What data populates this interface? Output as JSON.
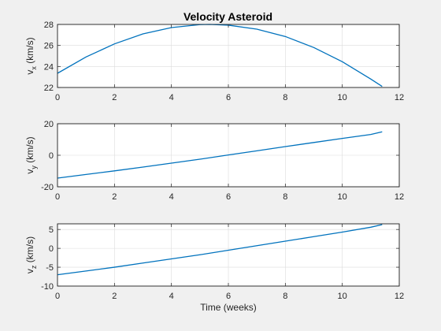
{
  "chart_data": [
    {
      "type": "line",
      "title": "Velocity Asteroid",
      "xlabel": "",
      "ylabel": {
        "main": "v",
        "sub": "x",
        "unit": " (km/s)"
      },
      "xlim": [
        0,
        12
      ],
      "ylim": [
        22,
        28
      ],
      "xticks": [
        0,
        2,
        4,
        6,
        8,
        10,
        12
      ],
      "yticks": [
        22,
        24,
        26,
        28
      ],
      "grid": true,
      "color": "#0072bd",
      "series": [
        {
          "x": [
            0,
            1,
            2,
            3,
            4,
            5,
            5.35,
            6,
            7,
            8,
            9,
            10,
            11,
            11.4
          ],
          "values": [
            23.35,
            24.9,
            26.15,
            27.1,
            27.7,
            27.98,
            28.0,
            27.93,
            27.55,
            26.85,
            25.8,
            24.45,
            22.8,
            22.1
          ]
        }
      ]
    },
    {
      "type": "line",
      "title": "",
      "xlabel": "",
      "ylabel": {
        "main": "v",
        "sub": "y",
        "unit": " (km/s)"
      },
      "xlim": [
        0,
        12
      ],
      "ylim": [
        -20,
        20
      ],
      "xticks": [
        0,
        2,
        4,
        6,
        8,
        10,
        12
      ],
      "yticks": [
        -20,
        0,
        20
      ],
      "grid": true,
      "color": "#0072bd",
      "series": [
        {
          "x": [
            0,
            1,
            2,
            3,
            4,
            5,
            6,
            7,
            8,
            9,
            10,
            11,
            11.4
          ],
          "values": [
            -14.5,
            -12.2,
            -9.9,
            -7.5,
            -5.0,
            -2.5,
            0.2,
            2.8,
            5.5,
            8.1,
            10.7,
            13.2,
            14.9
          ]
        }
      ]
    },
    {
      "type": "line",
      "title": "",
      "xlabel": "Time (weeks)",
      "ylabel": {
        "main": "v",
        "sub": "z",
        "unit": " (km/s)"
      },
      "xlim": [
        0,
        12
      ],
      "ylim": [
        -10,
        6.5
      ],
      "xticks": [
        0,
        2,
        4,
        6,
        8,
        10,
        12
      ],
      "yticks": [
        -10,
        -5,
        0,
        5
      ],
      "grid": true,
      "color": "#0072bd",
      "series": [
        {
          "x": [
            0,
            1,
            2,
            3,
            4,
            5,
            6,
            7,
            8,
            9,
            10,
            11,
            11.4
          ],
          "values": [
            -7.0,
            -6.0,
            -5.0,
            -3.9,
            -2.8,
            -1.7,
            -0.5,
            0.7,
            1.9,
            3.1,
            4.3,
            5.6,
            6.3
          ]
        }
      ]
    }
  ]
}
